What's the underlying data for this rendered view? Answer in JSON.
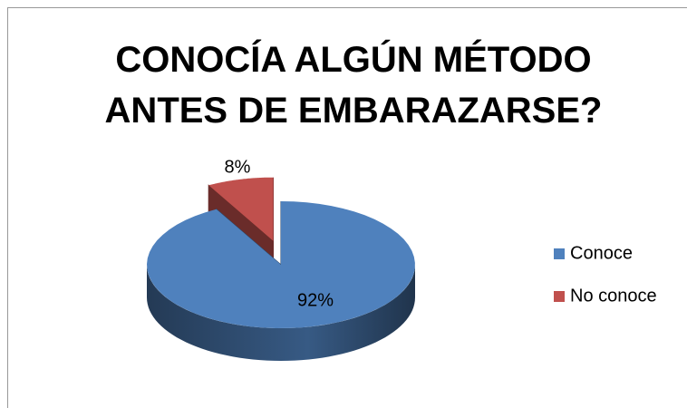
{
  "chart_data": {
    "type": "pie3d",
    "title": "CONOCÍA ALGÚN MÉTODO ANTES DE EMBARAZARSE?",
    "categories": [
      "Conoce",
      "No conoce"
    ],
    "values": [
      92,
      8
    ],
    "value_labels": [
      "92%",
      "8%"
    ],
    "colors": [
      "#4f81bd",
      "#c0504d"
    ],
    "legend": "right"
  }
}
